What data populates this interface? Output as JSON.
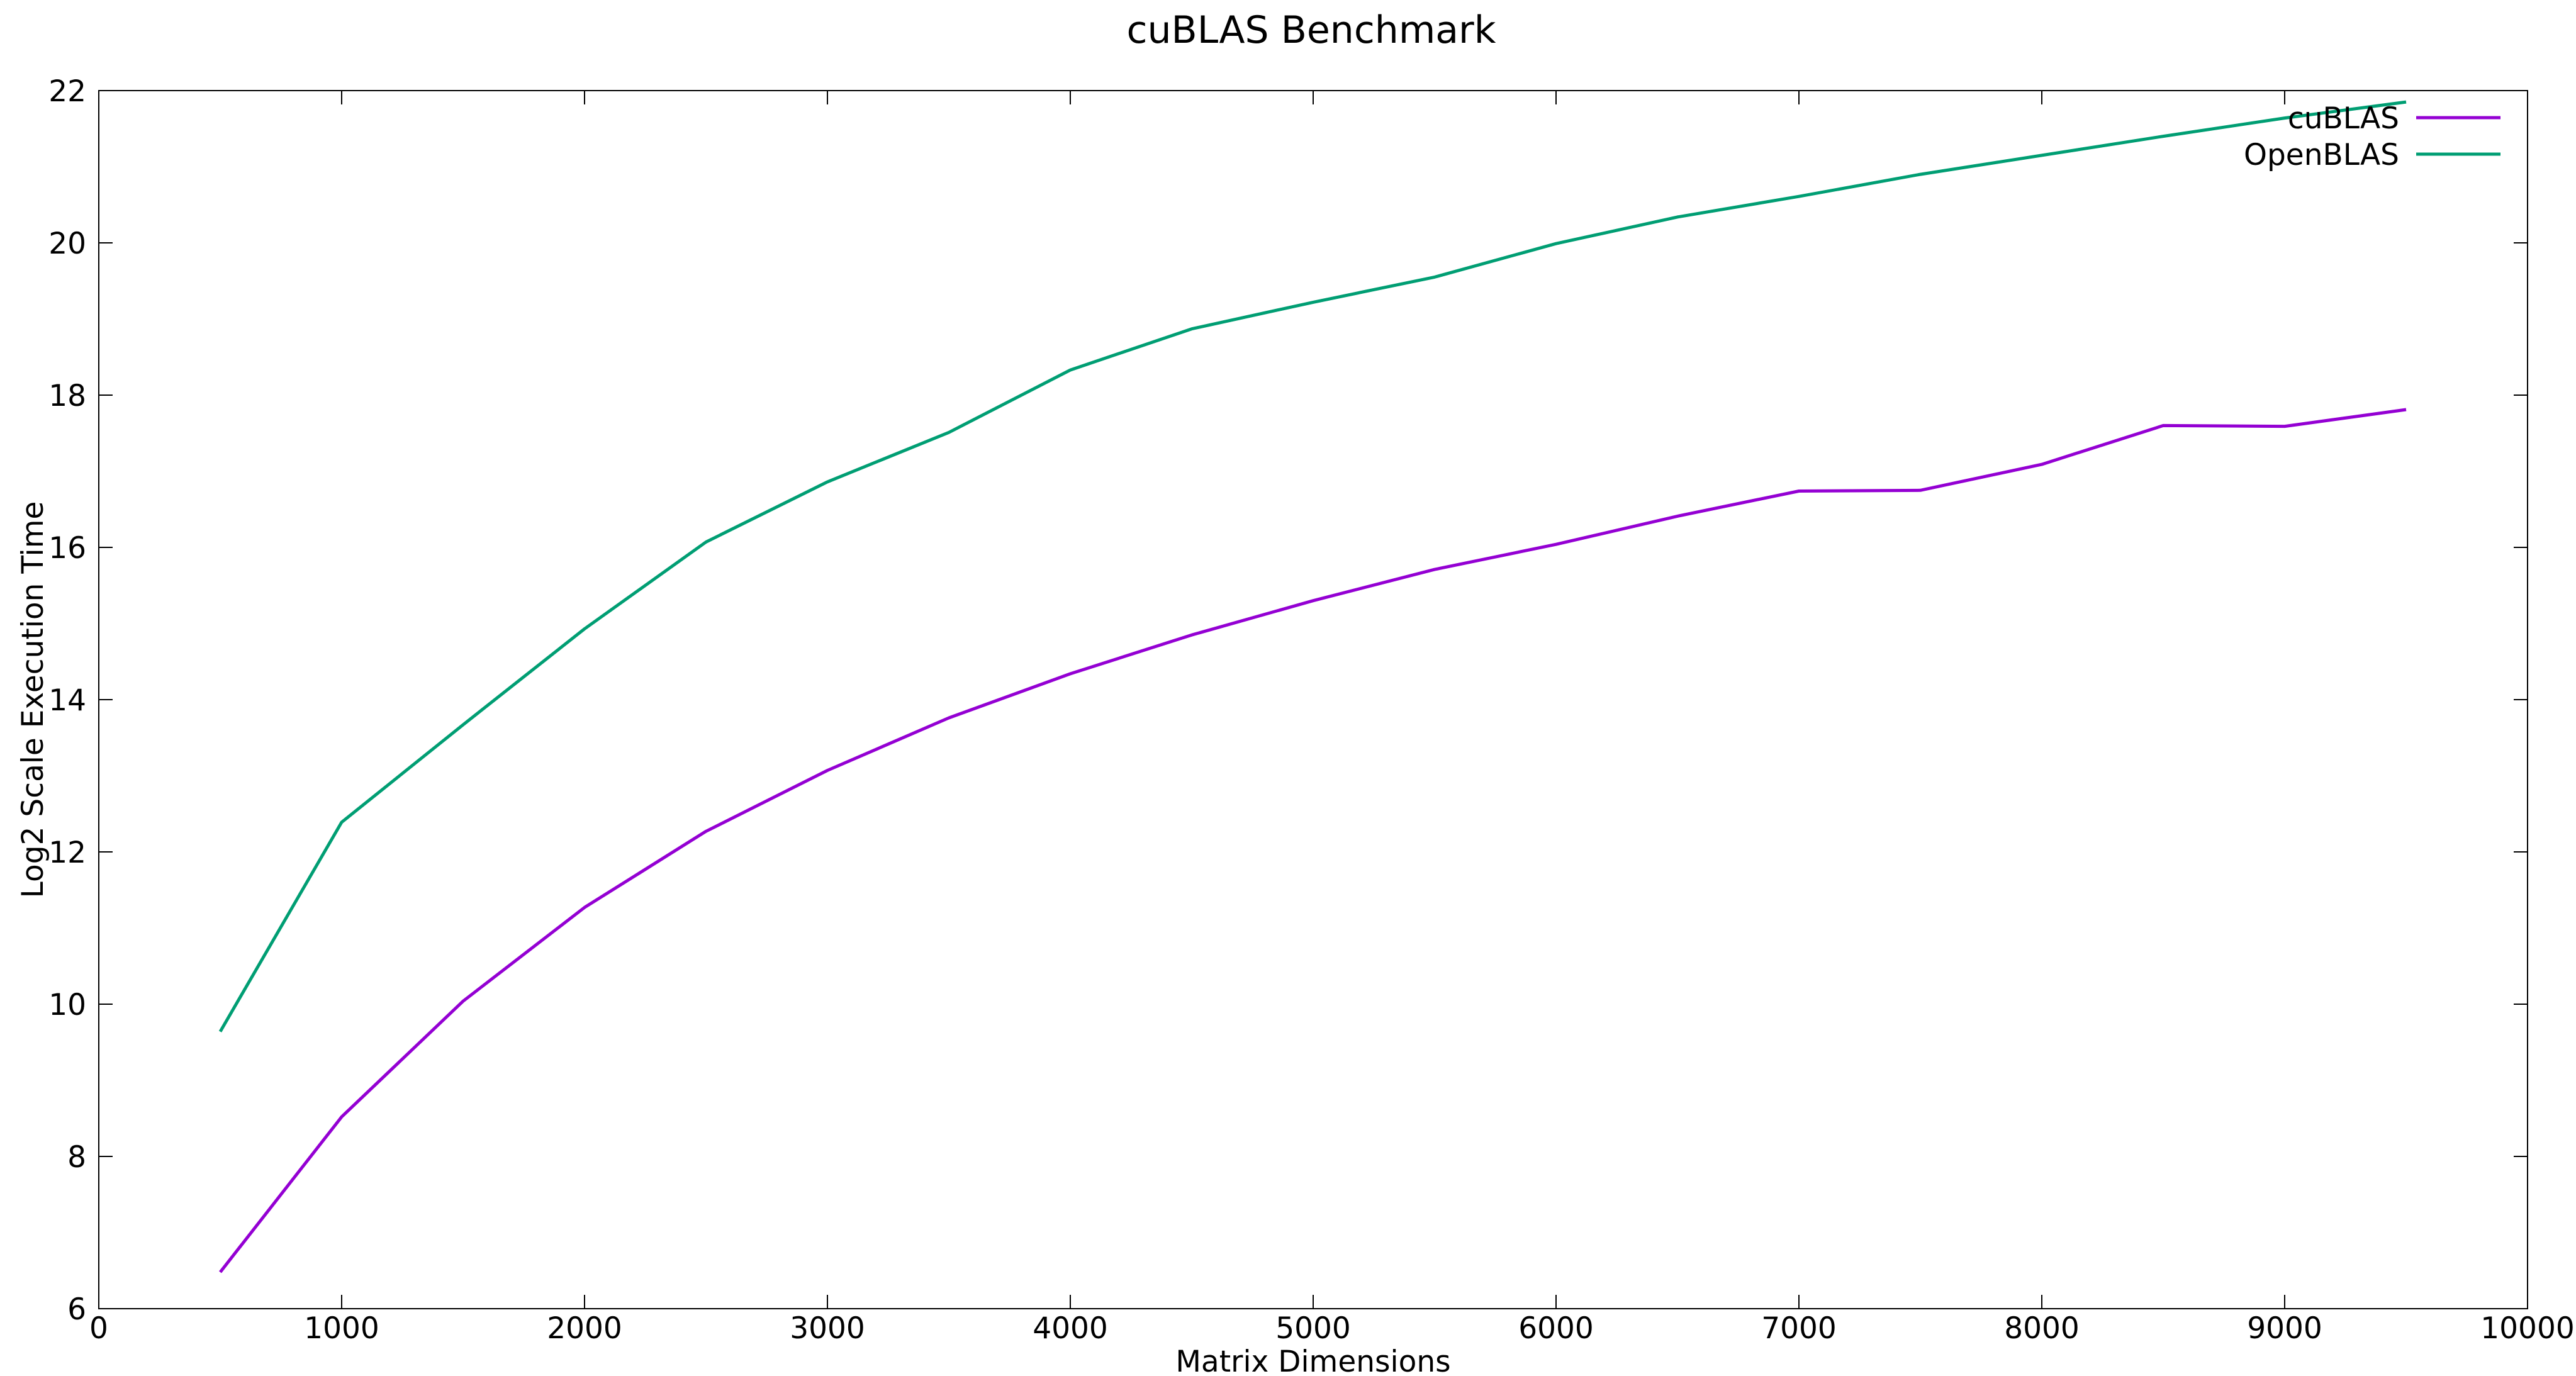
{
  "chart_data": {
    "type": "line",
    "title": "cuBLAS Benchmark",
    "xlabel": "Matrix Dimensions",
    "ylabel": "Log2 Scale Execution Time",
    "xlim": [
      0,
      10000
    ],
    "ylim": [
      6,
      22
    ],
    "xticks": [
      0,
      1000,
      2000,
      3000,
      4000,
      5000,
      6000,
      7000,
      8000,
      9000,
      10000
    ],
    "yticks": [
      6,
      8,
      10,
      12,
      14,
      16,
      18,
      20,
      22
    ],
    "grid": false,
    "legend_position": "top-right",
    "x": [
      500,
      1000,
      1500,
      2000,
      2500,
      3000,
      3500,
      4000,
      4500,
      5000,
      5500,
      6000,
      6500,
      7000,
      7500,
      8000,
      8500,
      9000,
      9500
    ],
    "series": [
      {
        "name": "cuBLAS",
        "color": "#9400d3",
        "values": [
          6.48,
          8.52,
          10.04,
          11.27,
          12.27,
          13.07,
          13.76,
          14.34,
          14.85,
          15.3,
          15.71,
          16.04,
          16.41,
          16.74,
          16.75,
          17.09,
          17.6,
          17.59,
          17.81
        ]
      },
      {
        "name": "OpenBLAS",
        "color": "#009e73",
        "values": [
          9.64,
          12.39,
          13.67,
          14.93,
          16.07,
          16.86,
          17.51,
          18.33,
          18.87,
          19.22,
          19.55,
          19.99,
          20.34,
          20.61,
          20.9,
          21.15,
          21.4,
          21.64,
          21.85
        ]
      }
    ]
  }
}
